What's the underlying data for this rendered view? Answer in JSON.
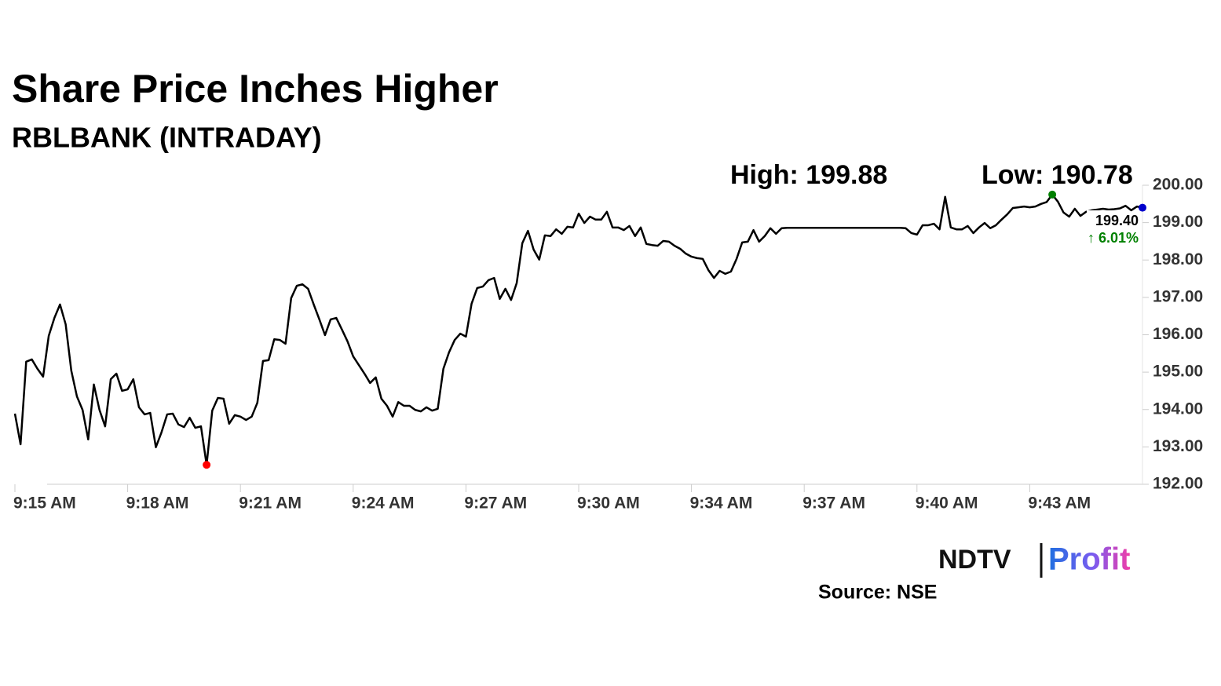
{
  "chart_data": {
    "type": "line",
    "title": "Share Price Inches Higher",
    "subtitle": "RBLBANK (INTRADAY)",
    "high_label": "High: 199.88",
    "low_label": "Low: 190.78",
    "last_price_label": "199.40",
    "change_label": "↑ 6.01%",
    "source": "Source: NSE",
    "brand": {
      "left": "NDTV",
      "right": "Profit"
    },
    "color": "#000000",
    "low_marker_color": "#ff0000",
    "high_marker_color": "#008000",
    "last_marker_color": "#0000cc",
    "change_color": "#008000",
    "ylim": [
      192,
      200
    ],
    "yticks": [
      {
        "value": 192,
        "label": "192.00"
      },
      {
        "value": 193,
        "label": "193.00"
      },
      {
        "value": 194,
        "label": "194.00"
      },
      {
        "value": 195,
        "label": "195.00"
      },
      {
        "value": 196,
        "label": "196.00"
      },
      {
        "value": 197,
        "label": "197.00"
      },
      {
        "value": 198,
        "label": "198.00"
      },
      {
        "value": 199,
        "label": "199.00"
      },
      {
        "value": 200,
        "label": "200.00"
      }
    ],
    "categories": [
      "9:15 AM",
      null,
      null,
      null,
      null,
      null,
      null,
      null,
      null,
      null,
      null,
      null,
      null,
      null,
      null,
      null,
      null,
      null,
      null,
      null,
      "9:18 AM",
      null,
      null,
      null,
      null,
      null,
      null,
      null,
      null,
      null,
      null,
      null,
      null,
      null,
      null,
      null,
      null,
      null,
      null,
      null,
      "9:21 AM",
      null,
      null,
      null,
      null,
      null,
      null,
      null,
      null,
      null,
      null,
      null,
      null,
      null,
      null,
      null,
      null,
      null,
      null,
      null,
      "9:24 AM",
      null,
      null,
      null,
      null,
      null,
      null,
      null,
      null,
      null,
      null,
      null,
      null,
      null,
      null,
      null,
      null,
      null,
      null,
      null,
      "9:27 AM",
      null,
      null,
      null,
      null,
      null,
      null,
      null,
      null,
      null,
      null,
      null,
      null,
      null,
      null,
      null,
      null,
      null,
      null,
      null,
      "9:30 AM",
      null,
      null,
      null,
      null,
      null,
      null,
      null,
      null,
      null,
      null,
      null,
      null,
      null,
      null,
      null,
      null,
      null,
      null,
      null,
      "9:34 AM",
      null,
      null,
      null,
      null,
      null,
      null,
      null,
      null,
      null,
      null,
      null,
      null,
      null,
      null,
      null,
      null,
      null,
      null,
      null,
      "9:37 AM",
      null,
      null,
      null,
      null,
      null,
      null,
      null,
      null,
      null,
      null,
      null,
      null,
      null,
      null,
      null,
      null,
      null,
      null,
      null,
      "9:40 AM",
      null,
      null,
      null,
      null,
      null,
      null,
      null,
      null,
      null,
      null,
      null,
      null,
      null,
      null,
      null,
      null,
      null,
      null,
      null,
      "9:43 AM",
      null,
      null,
      null,
      null,
      null,
      null,
      null,
      null,
      null,
      null,
      null,
      null,
      null,
      null,
      null,
      null,
      null,
      null,
      null,
      null
    ],
    "values": [
      193.89,
      193.07,
      195.28,
      195.34,
      195.09,
      194.88,
      195.97,
      196.45,
      196.81,
      196.28,
      195.04,
      194.35,
      193.99,
      193.2,
      194.67,
      193.99,
      193.55,
      194.81,
      194.96,
      194.5,
      194.54,
      194.81,
      194.06,
      193.87,
      193.91,
      192.99,
      193.39,
      193.87,
      193.89,
      193.6,
      193.53,
      193.78,
      193.51,
      193.55,
      192.52,
      193.97,
      194.31,
      194.29,
      193.62,
      193.85,
      193.81,
      193.72,
      193.81,
      194.18,
      195.3,
      195.32,
      195.88,
      195.86,
      195.76,
      196.98,
      197.31,
      197.35,
      197.23,
      196.81,
      196.41,
      195.99,
      196.41,
      196.45,
      196.14,
      195.82,
      195.42,
      195.19,
      194.96,
      194.71,
      194.86,
      194.29,
      194.1,
      193.81,
      194.2,
      194.1,
      194.1,
      193.99,
      193.95,
      194.06,
      193.97,
      194.02,
      195.09,
      195.53,
      195.86,
      196.03,
      195.95,
      196.83,
      197.25,
      197.29,
      197.46,
      197.52,
      196.96,
      197.23,
      196.93,
      197.38,
      198.45,
      198.78,
      198.28,
      198.01,
      198.66,
      198.64,
      198.82,
      198.7,
      198.89,
      198.87,
      199.24,
      198.99,
      199.16,
      199.08,
      199.08,
      199.29,
      198.87,
      198.87,
      198.8,
      198.91,
      198.64,
      198.87,
      198.43,
      198.4,
      198.38,
      198.51,
      198.49,
      198.38,
      198.3,
      198.17,
      198.09,
      198.05,
      198.03,
      197.73,
      197.52,
      197.71,
      197.63,
      197.69,
      198.03,
      198.47,
      198.49,
      198.8,
      198.49,
      198.64,
      198.85,
      198.7,
      198.85,
      198.86,
      198.86,
      198.86,
      198.86,
      198.86,
      198.86,
      198.86,
      198.86,
      198.86,
      198.86,
      198.86,
      198.86,
      198.86,
      198.86,
      198.86,
      198.86,
      198.86,
      198.86,
      198.86,
      198.86,
      198.86,
      198.85,
      198.72,
      198.68,
      198.93,
      198.93,
      198.97,
      198.82,
      199.69,
      198.87,
      198.82,
      198.82,
      198.91,
      198.72,
      198.87,
      198.99,
      198.85,
      198.93,
      199.08,
      199.22,
      199.39,
      199.41,
      199.43,
      199.41,
      199.43,
      199.5,
      199.55,
      199.75,
      199.56,
      199.27,
      199.16,
      199.37,
      199.18,
      199.29,
      199.33,
      199.35,
      199.37,
      199.35,
      199.36,
      199.38,
      199.45,
      199.33,
      199.43,
      199.4
    ]
  }
}
